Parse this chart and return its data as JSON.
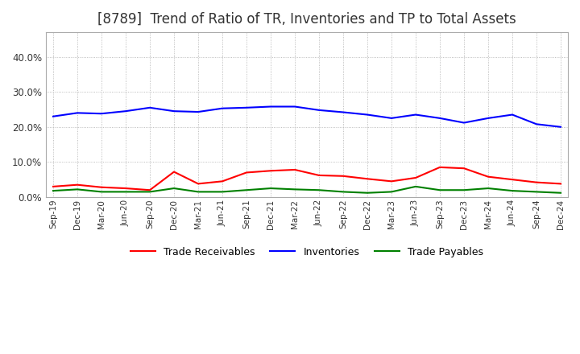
{
  "title": "[8789]  Trend of Ratio of TR, Inventories and TP to Total Assets",
  "x_labels": [
    "Sep-19",
    "Dec-19",
    "Mar-20",
    "Jun-20",
    "Sep-20",
    "Dec-20",
    "Mar-21",
    "Jun-21",
    "Sep-21",
    "Dec-21",
    "Mar-22",
    "Jun-22",
    "Sep-22",
    "Dec-22",
    "Mar-23",
    "Jun-23",
    "Sep-23",
    "Dec-23",
    "Mar-24",
    "Jun-24",
    "Sep-24",
    "Dec-24"
  ],
  "trade_receivables": [
    3.0,
    3.5,
    2.8,
    2.5,
    2.0,
    7.2,
    3.8,
    4.5,
    7.0,
    7.5,
    7.8,
    6.2,
    6.0,
    5.2,
    4.5,
    5.5,
    8.5,
    8.2,
    5.8,
    5.0,
    4.2,
    3.8
  ],
  "inventories": [
    23.0,
    24.0,
    23.8,
    24.5,
    25.5,
    24.5,
    24.3,
    25.3,
    25.5,
    25.8,
    25.8,
    24.8,
    24.2,
    23.5,
    22.5,
    23.5,
    22.5,
    21.2,
    22.5,
    23.5,
    20.8,
    20.0
  ],
  "trade_payables": [
    1.8,
    2.2,
    1.5,
    1.5,
    1.5,
    2.5,
    1.5,
    1.5,
    2.0,
    2.5,
    2.2,
    2.0,
    1.5,
    1.2,
    1.5,
    3.0,
    2.0,
    2.0,
    2.5,
    1.8,
    1.5,
    1.2
  ],
  "tr_color": "#ff0000",
  "inv_color": "#0000ff",
  "tp_color": "#008000",
  "ylim": [
    0,
    47
  ],
  "yticks": [
    0.0,
    10.0,
    20.0,
    30.0,
    40.0
  ],
  "grid_color": "#aaaaaa",
  "background_color": "#ffffff",
  "title_fontsize": 12,
  "legend_labels": [
    "Trade Receivables",
    "Inventories",
    "Trade Payables"
  ],
  "line_width": 1.5
}
